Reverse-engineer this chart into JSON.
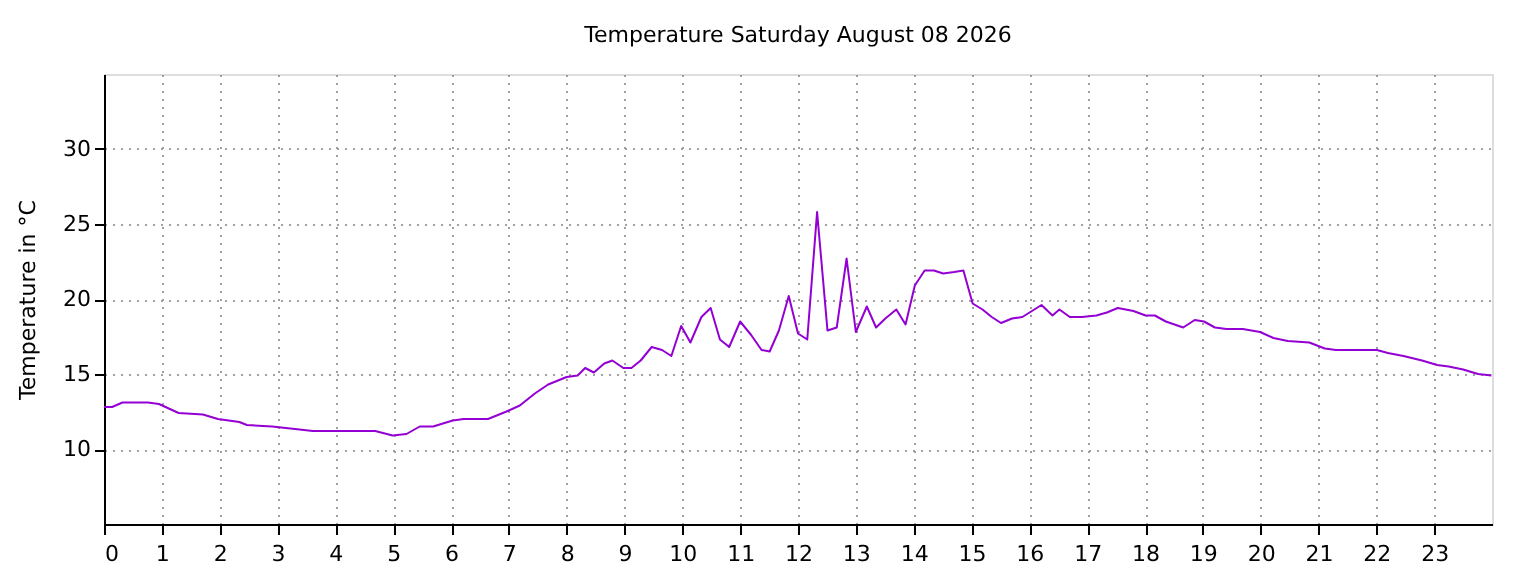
{
  "chart_data": {
    "type": "line",
    "title": "Temperature Saturday August 08 2026",
    "ylabel": "Temperature in °C",
    "xlim": [
      0,
      24
    ],
    "xticks": [
      0,
      1,
      2,
      3,
      4,
      5,
      6,
      7,
      8,
      9,
      10,
      11,
      12,
      13,
      14,
      15,
      16,
      17,
      18,
      19,
      20,
      21,
      22,
      23
    ],
    "ylim": [
      5,
      35
    ],
    "yticks": [
      10,
      15,
      20,
      25,
      30
    ],
    "grid": true,
    "line_style": "solid",
    "marker": "none",
    "series": [
      {
        "color": "#9400d3",
        "x": [
          0,
          0.14,
          0.32,
          0.76,
          0.95,
          1.29,
          1.71,
          1.97,
          2.34,
          2.47,
          2.91,
          3.38,
          3.61,
          4.69,
          4.99,
          5.23,
          5.46,
          5.69,
          6.03,
          6.22,
          6.64,
          6.96,
          7.19,
          7.45,
          7.68,
          8.0,
          8.19,
          8.32,
          8.47,
          8.65,
          8.79,
          8.98,
          9.12,
          9.28,
          9.47,
          9.65,
          9.81,
          9.98,
          10.14,
          10.33,
          10.49,
          10.65,
          10.81,
          11.0,
          11.19,
          11.37,
          11.51,
          11.67,
          11.84,
          12.0,
          12.16,
          12.33,
          12.51,
          12.67,
          12.84,
          13.0,
          13.19,
          13.35,
          13.51,
          13.7,
          13.86,
          14.02,
          14.19,
          14.35,
          14.51,
          14.7,
          14.86,
          15.02,
          15.19,
          15.35,
          15.51,
          15.7,
          15.88,
          16.21,
          16.4,
          16.52,
          16.7,
          16.91,
          17.16,
          17.34,
          17.53,
          17.8,
          18.01,
          18.17,
          18.36,
          18.66,
          18.86,
          19.02,
          19.21,
          19.41,
          19.69,
          19.99,
          20.22,
          20.47,
          20.84,
          21.11,
          21.3,
          21.76,
          22.01,
          22.2,
          22.47,
          22.79,
          23.05,
          23.25,
          23.5,
          23.76,
          23.99
        ],
        "values": [
          12.8,
          12.8,
          13.1,
          13.1,
          13.0,
          12.4,
          12.3,
          12.0,
          11.8,
          11.6,
          11.5,
          11.3,
          11.2,
          11.2,
          10.9,
          11.0,
          11.5,
          11.5,
          11.9,
          12.0,
          12.0,
          12.5,
          12.9,
          13.7,
          14.3,
          14.8,
          14.9,
          15.4,
          15.1,
          15.7,
          15.9,
          15.4,
          15.4,
          15.9,
          16.8,
          16.6,
          16.2,
          18.2,
          17.1,
          18.8,
          19.4,
          17.3,
          16.8,
          18.5,
          17.6,
          16.6,
          16.5,
          17.9,
          20.2,
          17.7,
          17.3,
          25.8,
          17.9,
          18.1,
          22.7,
          17.8,
          19.5,
          18.1,
          18.7,
          19.3,
          18.3,
          20.9,
          21.9,
          21.9,
          21.7,
          21.8,
          21.9,
          19.7,
          19.3,
          18.8,
          18.4,
          18.7,
          18.8,
          19.6,
          18.9,
          19.3,
          18.8,
          18.8,
          18.9,
          19.1,
          19.4,
          19.2,
          18.9,
          18.9,
          18.5,
          18.1,
          18.6,
          18.5,
          18.1,
          18.0,
          18.0,
          17.8,
          17.4,
          17.2,
          17.1,
          16.7,
          16.6,
          16.6,
          16.6,
          16.4,
          16.2,
          15.9,
          15.6,
          15.5,
          15.3,
          15.0,
          14.9
        ]
      }
    ]
  }
}
